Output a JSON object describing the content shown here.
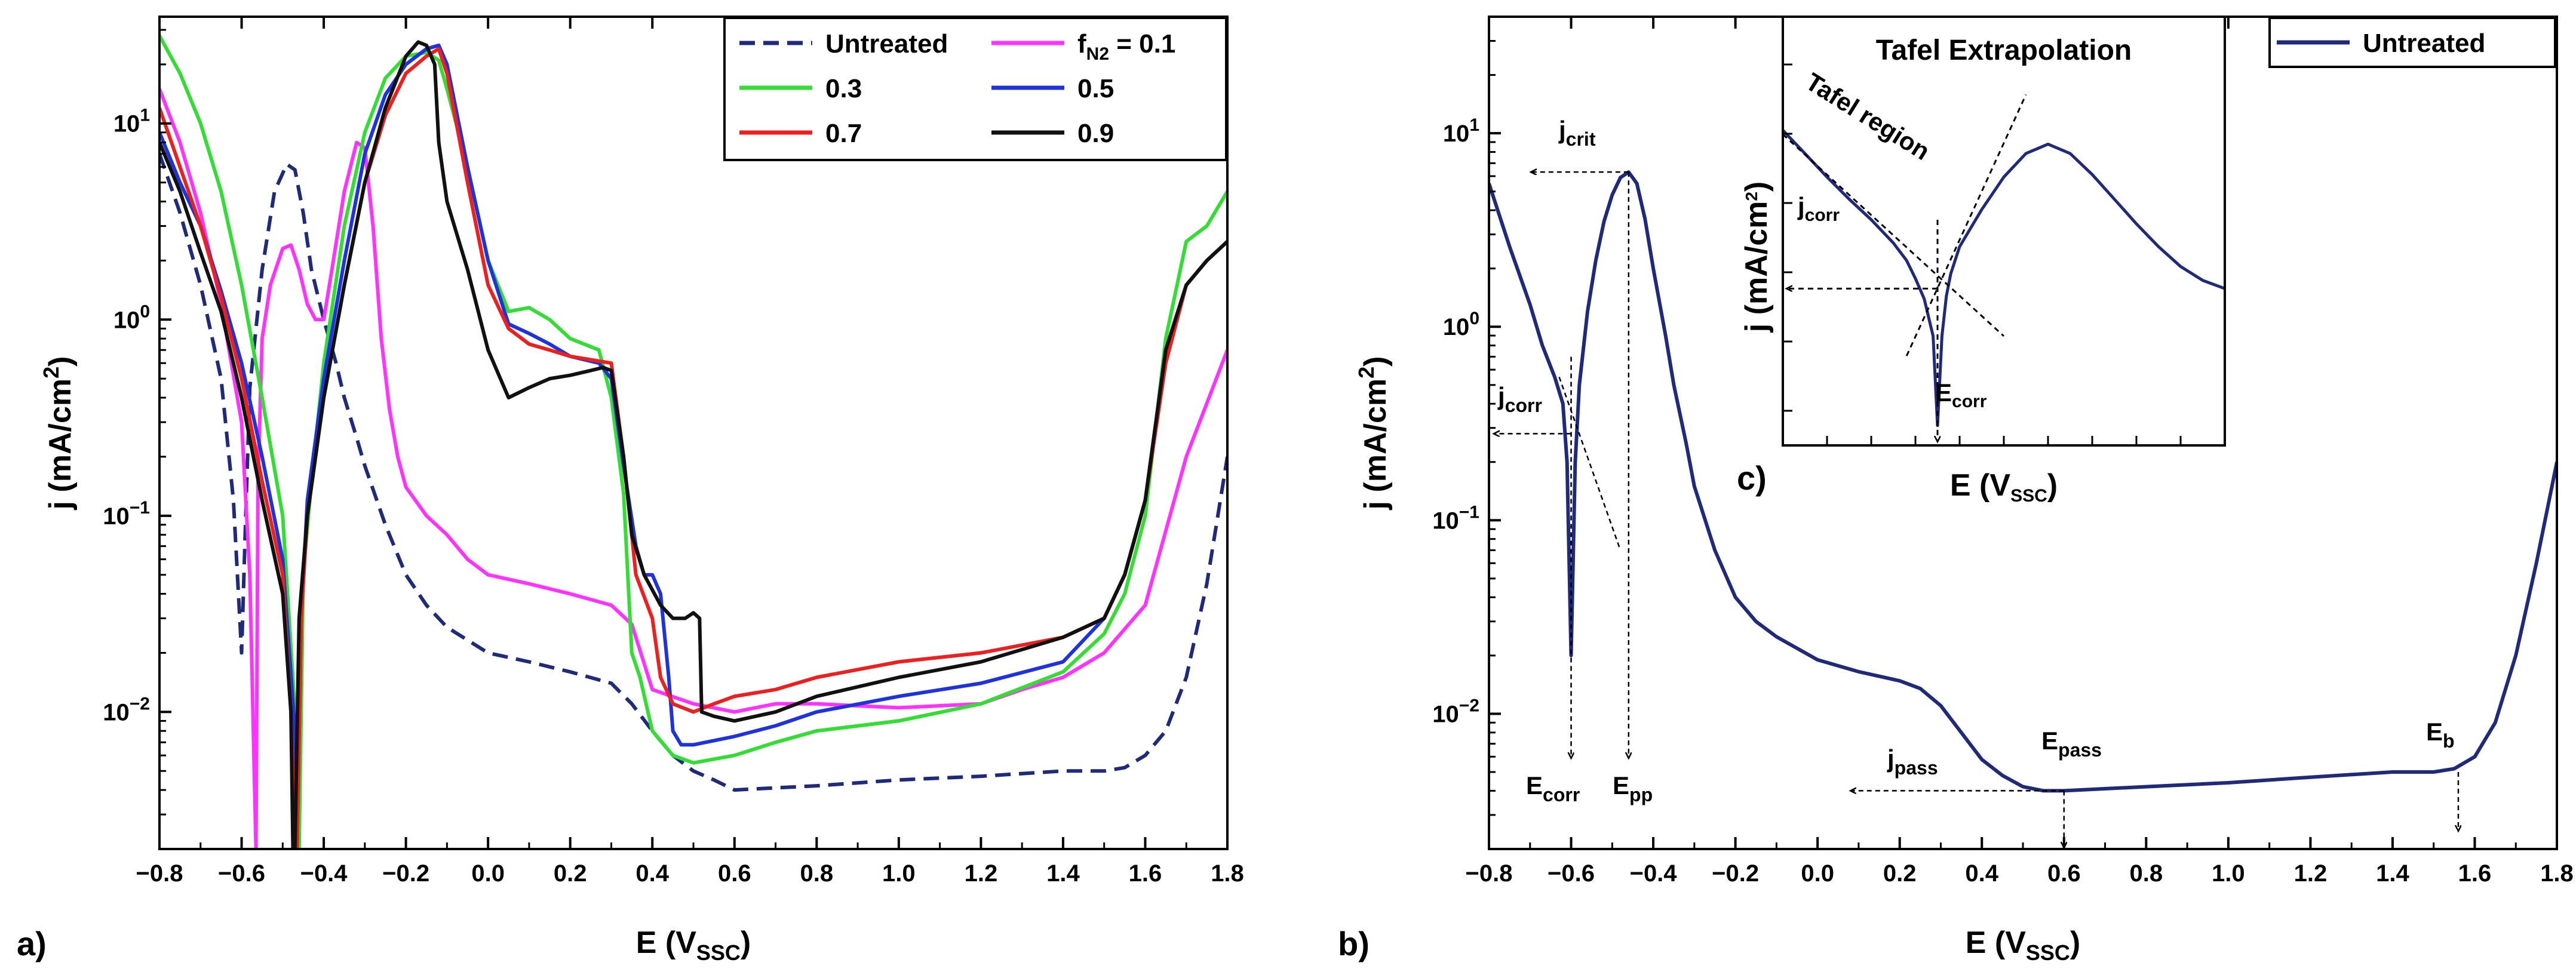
{
  "chart_data": [
    {
      "panel_label": "a)",
      "type": "line",
      "xlabel": "E (VSSC)",
      "xlabel_main": "E (V",
      "xlabel_sub": "SSC",
      "xlabel_end": ")",
      "ylabel": "j (mA/cm2)",
      "ylabel_main": "j (mA/cm",
      "ylabel_sup": "2",
      "ylabel_end": ")",
      "yscale": "log",
      "xlim": [
        -0.8,
        1.8
      ],
      "ylim": [
        0.002,
        35
      ],
      "x_ticks": [
        "-0.8",
        "-0.6",
        "-0.4",
        "-0.2",
        "0.0",
        "0.2",
        "0.4",
        "0.6",
        "0.8",
        "1.0",
        "1.2",
        "1.4",
        "1.6",
        "1.8"
      ],
      "y_ticks": [
        {
          "value": 0.01,
          "base": "10",
          "exp": "-2"
        },
        {
          "value": 0.1,
          "base": "10",
          "exp": "-1"
        },
        {
          "value": 1,
          "base": "10",
          "exp": "0"
        },
        {
          "value": 10,
          "base": "10",
          "exp": "1"
        }
      ],
      "legend": [
        {
          "label": "Untreated",
          "color": "#1f2a7a",
          "dash": true
        },
        {
          "label": "fN2 = 0.1",
          "label_main": "f",
          "label_sub": "N2",
          "label_end": " = 0.1",
          "color": "#ff33ff",
          "dash": false
        },
        {
          "label": "0.3",
          "color": "#33dd33",
          "dash": false
        },
        {
          "label": "0.5",
          "color": "#1f33dd",
          "dash": false
        },
        {
          "label": "0.7",
          "color": "#ee1f1f",
          "dash": false
        },
        {
          "label": "0.9",
          "color": "#111111",
          "dash": false
        }
      ],
      "series": [
        {
          "name": "Untreated",
          "color": "#1f2a7a",
          "dash": true,
          "x": [
            -0.8,
            -0.75,
            -0.7,
            -0.65,
            -0.62,
            -0.6,
            -0.59,
            -0.58,
            -0.55,
            -0.52,
            -0.49,
            -0.47,
            -0.45,
            -0.43,
            -0.4,
            -0.37,
            -0.35,
            -0.32,
            -0.3,
            -0.25,
            -0.2,
            -0.15,
            -0.1,
            0.0,
            0.1,
            0.2,
            0.3,
            0.35,
            0.4,
            0.45,
            0.5,
            0.55,
            0.6,
            0.8,
            1.0,
            1.2,
            1.4,
            1.5,
            1.55,
            1.6,
            1.65,
            1.7,
            1.75,
            1.8
          ],
          "y": [
            7,
            3.5,
            1.5,
            0.5,
            0.12,
            0.02,
            0.1,
            0.45,
            1.8,
            4.5,
            6.2,
            5.8,
            3.5,
            1.8,
            1.0,
            0.6,
            0.4,
            0.25,
            0.18,
            0.09,
            0.05,
            0.035,
            0.027,
            0.02,
            0.018,
            0.016,
            0.014,
            0.011,
            0.008,
            0.006,
            0.005,
            0.0045,
            0.004,
            0.0042,
            0.0045,
            0.0047,
            0.005,
            0.005,
            0.0052,
            0.006,
            0.008,
            0.015,
            0.045,
            0.2
          ]
        },
        {
          "name": "fN2 = 0.1",
          "color": "#ff33ff",
          "dash": false,
          "x": [
            -0.8,
            -0.75,
            -0.7,
            -0.65,
            -0.6,
            -0.58,
            -0.565,
            -0.56,
            -0.55,
            -0.53,
            -0.5,
            -0.48,
            -0.46,
            -0.44,
            -0.42,
            -0.4,
            -0.38,
            -0.35,
            -0.32,
            -0.3,
            -0.28,
            -0.26,
            -0.24,
            -0.22,
            -0.2,
            -0.15,
            -0.1,
            -0.05,
            0.0,
            0.1,
            0.2,
            0.3,
            0.35,
            0.4,
            0.5,
            0.6,
            0.7,
            0.8,
            1.0,
            1.2,
            1.3,
            1.4,
            1.5,
            1.6,
            1.7,
            1.8
          ],
          "y": [
            15,
            8,
            3.5,
            1.2,
            0.3,
            0.05,
            0.002,
            0.15,
            0.8,
            1.5,
            2.3,
            2.4,
            1.8,
            1.2,
            1.0,
            1.0,
            1.8,
            4.5,
            8.0,
            7.5,
            3.0,
            0.8,
            0.35,
            0.2,
            0.14,
            0.1,
            0.08,
            0.06,
            0.05,
            0.045,
            0.04,
            0.035,
            0.028,
            0.013,
            0.011,
            0.01,
            0.011,
            0.011,
            0.0105,
            0.011,
            0.013,
            0.015,
            0.02,
            0.035,
            0.2,
            0.7
          ]
        },
        {
          "name": "0.3",
          "color": "#33dd33",
          "dash": false,
          "x": [
            -0.8,
            -0.75,
            -0.7,
            -0.65,
            -0.6,
            -0.55,
            -0.5,
            -0.47,
            -0.46,
            -0.45,
            -0.43,
            -0.4,
            -0.35,
            -0.3,
            -0.25,
            -0.2,
            -0.15,
            -0.12,
            -0.1,
            -0.05,
            0.0,
            0.05,
            0.1,
            0.15,
            0.2,
            0.27,
            0.3,
            0.33,
            0.35,
            0.37,
            0.4,
            0.45,
            0.5,
            0.6,
            0.7,
            0.8,
            1.0,
            1.2,
            1.4,
            1.5,
            1.55,
            1.6,
            1.65,
            1.7,
            1.75,
            1.8
          ],
          "y": [
            28,
            18,
            10,
            4.5,
            1.5,
            0.4,
            0.1,
            0.01,
            0.002,
            0.05,
            0.15,
            0.6,
            3,
            9,
            17,
            22,
            23,
            21,
            15,
            6,
            2,
            1.1,
            1.15,
            1.0,
            0.8,
            0.7,
            0.4,
            0.13,
            0.02,
            0.015,
            0.008,
            0.006,
            0.0055,
            0.006,
            0.007,
            0.008,
            0.009,
            0.011,
            0.016,
            0.025,
            0.04,
            0.1,
            0.8,
            2.5,
            3.0,
            4.5
          ]
        },
        {
          "name": "0.5",
          "color": "#1f33dd",
          "dash": false,
          "x": [
            -0.8,
            -0.75,
            -0.7,
            -0.65,
            -0.6,
            -0.55,
            -0.5,
            -0.47,
            -0.465,
            -0.455,
            -0.44,
            -0.4,
            -0.35,
            -0.3,
            -0.25,
            -0.2,
            -0.15,
            -0.12,
            -0.1,
            -0.05,
            0.0,
            0.05,
            0.1,
            0.15,
            0.2,
            0.27,
            0.3,
            0.33,
            0.36,
            0.38,
            0.4,
            0.42,
            0.44,
            0.45,
            0.47,
            0.5,
            0.6,
            0.7,
            0.8,
            1.0,
            1.2,
            1.4,
            1.5,
            1.55,
            1.6,
            1.65,
            1.7,
            1.75,
            1.8
          ],
          "y": [
            9,
            5,
            3,
            1.4,
            0.6,
            0.2,
            0.06,
            0.008,
            0.002,
            0.03,
            0.12,
            0.5,
            2,
            7,
            14,
            20,
            24,
            25,
            20,
            6,
            2,
            0.95,
            0.85,
            0.75,
            0.65,
            0.6,
            0.5,
            0.18,
            0.07,
            0.05,
            0.05,
            0.04,
            0.015,
            0.008,
            0.0068,
            0.0068,
            0.0075,
            0.0085,
            0.01,
            0.012,
            0.014,
            0.018,
            0.03,
            0.05,
            0.12,
            0.7,
            1.5,
            2.0,
            2.5
          ]
        },
        {
          "name": "0.7",
          "color": "#ee1f1f",
          "dash": false,
          "x": [
            -0.8,
            -0.75,
            -0.7,
            -0.65,
            -0.6,
            -0.55,
            -0.5,
            -0.48,
            -0.47,
            -0.465,
            -0.455,
            -0.44,
            -0.4,
            -0.35,
            -0.3,
            -0.25,
            -0.2,
            -0.15,
            -0.12,
            -0.1,
            -0.05,
            0.0,
            0.05,
            0.1,
            0.15,
            0.2,
            0.3,
            0.33,
            0.36,
            0.4,
            0.42,
            0.45,
            0.5,
            0.55,
            0.6,
            0.7,
            0.8,
            1.0,
            1.2,
            1.4,
            1.5,
            1.55,
            1.6,
            1.65,
            1.7,
            1.75,
            1.8
          ],
          "y": [
            12,
            6,
            3,
            1.3,
            0.5,
            0.15,
            0.05,
            0.01,
            0.002,
            0.002,
            0.03,
            0.1,
            0.4,
            1.5,
            5,
            11,
            18,
            22,
            24,
            18,
            5,
            1.5,
            0.9,
            0.75,
            0.7,
            0.65,
            0.6,
            0.2,
            0.05,
            0.03,
            0.015,
            0.011,
            0.01,
            0.011,
            0.012,
            0.013,
            0.015,
            0.018,
            0.02,
            0.024,
            0.03,
            0.05,
            0.12,
            0.6,
            1.5,
            2.0,
            2.5
          ]
        },
        {
          "name": "0.9",
          "color": "#111111",
          "dash": false,
          "x": [
            -0.8,
            -0.75,
            -0.7,
            -0.65,
            -0.6,
            -0.55,
            -0.5,
            -0.48,
            -0.475,
            -0.47,
            -0.46,
            -0.44,
            -0.4,
            -0.35,
            -0.3,
            -0.25,
            -0.2,
            -0.17,
            -0.15,
            -0.13,
            -0.12,
            -0.1,
            -0.05,
            0.0,
            0.03,
            0.05,
            0.1,
            0.15,
            0.2,
            0.25,
            0.28,
            0.3,
            0.33,
            0.35,
            0.38,
            0.42,
            0.45,
            0.48,
            0.5,
            0.515,
            0.52,
            0.55,
            0.6,
            0.7,
            0.8,
            1.0,
            1.2,
            1.4,
            1.5,
            1.55,
            1.6,
            1.65,
            1.7,
            1.75,
            1.8
          ],
          "y": [
            8,
            4.5,
            2.2,
            1.1,
            0.4,
            0.12,
            0.04,
            0.01,
            0.002,
            0.002,
            0.03,
            0.1,
            0.4,
            1.5,
            5,
            12,
            22,
            26,
            25,
            20,
            8,
            4,
            1.8,
            0.7,
            0.5,
            0.4,
            0.45,
            0.5,
            0.52,
            0.55,
            0.57,
            0.55,
            0.2,
            0.08,
            0.05,
            0.035,
            0.03,
            0.03,
            0.032,
            0.03,
            0.01,
            0.0095,
            0.009,
            0.01,
            0.012,
            0.015,
            0.018,
            0.024,
            0.03,
            0.05,
            0.12,
            0.7,
            1.5,
            2.0,
            2.5
          ]
        }
      ]
    },
    {
      "panel_label": "b)",
      "type": "line",
      "xlabel": "E (VSSC)",
      "xlabel_main": "E (V",
      "xlabel_sub": "SSC",
      "xlabel_end": ")",
      "ylabel": "j (mA/cm2)",
      "ylabel_main": "j (mA/cm",
      "ylabel_sup": "2",
      "ylabel_end": ")",
      "yscale": "log",
      "xlim": [
        -0.8,
        1.8
      ],
      "ylim": [
        0.002,
        40
      ],
      "x_ticks": [
        "-0.8",
        "-0.6",
        "-0.4",
        "-0.2",
        "0.0",
        "0.2",
        "0.4",
        "0.6",
        "0.8",
        "1.0",
        "1.2",
        "1.4",
        "1.6",
        "1.8"
      ],
      "y_ticks": [
        {
          "value": 0.01,
          "base": "10",
          "exp": "-2"
        },
        {
          "value": 0.1,
          "base": "10",
          "exp": "-1"
        },
        {
          "value": 1,
          "base": "10",
          "exp": "0"
        },
        {
          "value": 10,
          "base": "10",
          "exp": "1"
        }
      ],
      "legend": [
        {
          "label": "Untreated",
          "color": "#1f2a7a"
        }
      ],
      "series": [
        {
          "name": "Untreated",
          "color": "#1f2a7a",
          "x": [
            -0.8,
            -0.75,
            -0.7,
            -0.67,
            -0.64,
            -0.62,
            -0.61,
            -0.6,
            -0.59,
            -0.58,
            -0.56,
            -0.54,
            -0.52,
            -0.5,
            -0.48,
            -0.46,
            -0.44,
            -0.42,
            -0.4,
            -0.37,
            -0.35,
            -0.32,
            -0.3,
            -0.25,
            -0.2,
            -0.15,
            -0.1,
            0.0,
            0.1,
            0.2,
            0.25,
            0.3,
            0.35,
            0.4,
            0.45,
            0.5,
            0.55,
            0.6,
            0.8,
            1.0,
            1.2,
            1.4,
            1.5,
            1.55,
            1.6,
            1.65,
            1.7,
            1.75,
            1.8
          ],
          "y": [
            5.5,
            2.6,
            1.3,
            0.8,
            0.55,
            0.4,
            0.2,
            0.02,
            0.2,
            0.5,
            1.2,
            2.2,
            3.5,
            4.8,
            5.9,
            6.3,
            5.5,
            3.6,
            2.0,
            0.9,
            0.5,
            0.25,
            0.15,
            0.07,
            0.04,
            0.03,
            0.025,
            0.019,
            0.0165,
            0.0148,
            0.0135,
            0.011,
            0.008,
            0.0058,
            0.0048,
            0.0042,
            0.004,
            0.004,
            0.0042,
            0.0044,
            0.0047,
            0.005,
            0.005,
            0.0052,
            0.006,
            0.009,
            0.02,
            0.06,
            0.2
          ]
        }
      ],
      "annotations": [
        {
          "main": "j",
          "sub": "crit"
        },
        {
          "main": "j",
          "sub": "corr"
        },
        {
          "main": "E",
          "sub": "corr"
        },
        {
          "main": "E",
          "sub": "pp"
        },
        {
          "main": "j",
          "sub": "pass"
        },
        {
          "main": "E",
          "sub": "pass"
        },
        {
          "main": "E",
          "sub": "b"
        }
      ]
    },
    {
      "panel_label": "c)",
      "type": "line",
      "title": "Tafel Extrapolation",
      "xlabel": "E (VSSC)",
      "xlabel_main": "E (V",
      "xlabel_sub": "SSC",
      "xlabel_end": ")",
      "ylabel": "j (mA/cm2)",
      "ylabel_main": "j (mA/cm",
      "ylabel_sup": "2",
      "ylabel_end": ")",
      "yscale": "log",
      "annotations": [
        "Tafel region",
        "jcorr",
        "Ecorr"
      ],
      "annotation_jcorr": {
        "main": "j",
        "sub": "corr"
      },
      "annotation_ecorr": {
        "main": "E",
        "sub": "corr"
      },
      "series": [
        {
          "name": "Untreated",
          "color": "#1f2a7a",
          "x": [
            0.0,
            0.05,
            0.1,
            0.15,
            0.2,
            0.25,
            0.28,
            0.3,
            0.32,
            0.34,
            0.35,
            0.36,
            0.37,
            0.38,
            0.4,
            0.45,
            0.5,
            0.55,
            0.6,
            0.65,
            0.7,
            0.75,
            0.8,
            0.85,
            0.9,
            0.95,
            1.0
          ],
          "y": [
            100,
            55,
            30,
            17,
            10,
            5.5,
            3.5,
            2.2,
            1.3,
            0.5,
            0.05,
            0.5,
            1.4,
            2.5,
            5,
            13,
            30,
            55,
            70,
            55,
            32,
            17,
            9,
            5,
            3,
            2.1,
            1.7
          ]
        }
      ]
    }
  ]
}
